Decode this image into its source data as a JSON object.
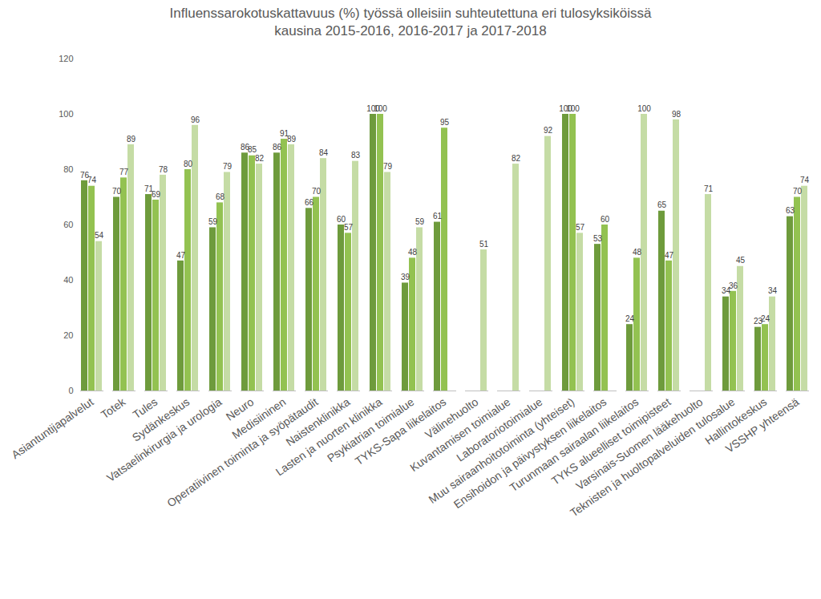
{
  "chart_data": {
    "type": "bar",
    "title": "Influenssarokotuskattavuus (%) työssä olleisiin suhteutettuna eri tulosyksiköissä\nkausina 2015-2016, 2016-2017 ja 2017-2018",
    "categories": [
      "Asiantuntijapalvelut",
      "Totek",
      "Tules",
      "Sydänkeskus",
      "Vatsaelinkirurgia ja urologia",
      "Neuro",
      "Medisiininen",
      "Operatiivinen toiminta ja syöpätaudit",
      "Naistenklinikka",
      "Lasten ja nuorten klinikka",
      "Psykiatrian toimialue",
      "TYKS-Sapa liikelaitos",
      "Välinehuolto",
      "Kuvantamisen toimialue",
      "Laboratoriotoimialue",
      "Muu sairaanhoitotoiminta (yhteiset)",
      "Ensihoidon ja päivystyksen liikelaitos",
      "Turunmaan sairaalan liikelaitos",
      "TYKS alueelliset toimipisteet",
      "Varsinais-Suomen lääkehuolto",
      "Teknisten ja huoltopalveluiden tulosalue",
      "Hallintokeskus",
      "VSSHP yhteensä"
    ],
    "series": [
      {
        "name": "2015-2016",
        "color": "#6e9b3c",
        "values": [
          76,
          70,
          71,
          47,
          59,
          86,
          86,
          66,
          60,
          100,
          39,
          61,
          null,
          null,
          null,
          100,
          53,
          24,
          65,
          null,
          34,
          23,
          63
        ]
      },
      {
        "name": "2016-2017",
        "color": "#93c251",
        "values": [
          74,
          77,
          69,
          80,
          68,
          85,
          91,
          70,
          57,
          100,
          48,
          95,
          null,
          null,
          null,
          100,
          60,
          48,
          47,
          null,
          36,
          24,
          70
        ]
      },
      {
        "name": "2017-2018",
        "color": "#c5dca5",
        "values": [
          54,
          89,
          78,
          96,
          79,
          82,
          89,
          84,
          83,
          79,
          59,
          null,
          51,
          82,
          92,
          57,
          null,
          100,
          98,
          71,
          45,
          34,
          74
        ]
      }
    ],
    "ylim": [
      0,
      120
    ],
    "yticks": [
      0,
      20,
      40,
      60,
      80,
      100,
      120
    ],
    "grid": false,
    "data_labels": true
  }
}
